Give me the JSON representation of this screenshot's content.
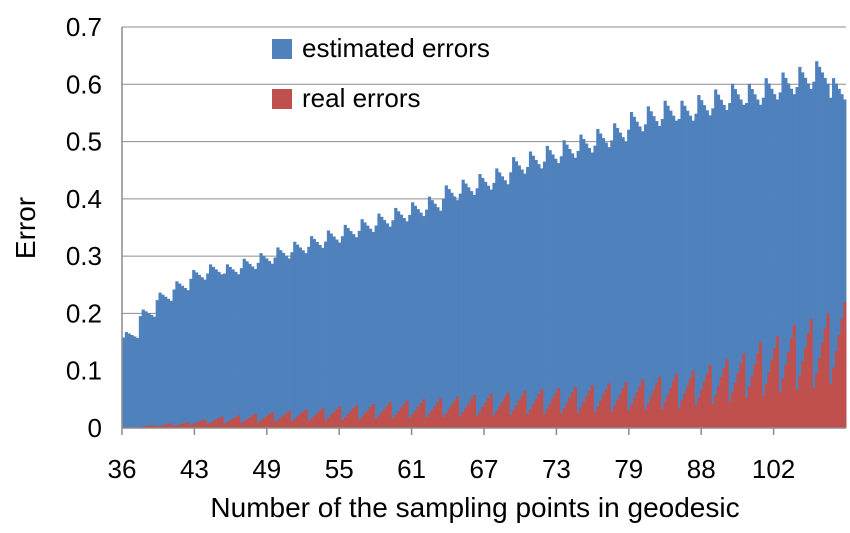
{
  "chart_data": {
    "type": "bar",
    "title": "",
    "xlabel": "Number of the sampling points in geodesic",
    "ylabel": "Error",
    "ylim": [
      0,
      0.7
    ],
    "yticks": [
      "0",
      "0.1",
      "0.2",
      "0.3",
      "0.4",
      "0.5",
      "0.6",
      "0.7"
    ],
    "xticks": [
      "36",
      "43",
      "49",
      "55",
      "61",
      "67",
      "73",
      "79",
      "88",
      "102"
    ],
    "grid": "horizontal",
    "legend_position": "top",
    "series": [
      {
        "name": "estimated errors",
        "color": "#4f81bd",
        "values": [
          0.17,
          0.21,
          0.24,
          0.26,
          0.28,
          0.29,
          0.29,
          0.3,
          0.31,
          0.32,
          0.33,
          0.34,
          0.35,
          0.36,
          0.37,
          0.38,
          0.39,
          0.4,
          0.41,
          0.43,
          0.44,
          0.45,
          0.46,
          0.48,
          0.49,
          0.5,
          0.51,
          0.52,
          0.53,
          0.54,
          0.56,
          0.57,
          0.58,
          0.58,
          0.59,
          0.6,
          0.61,
          0.61,
          0.62,
          0.63,
          0.64,
          0.65,
          0.62
        ]
      },
      {
        "name": "real errors",
        "color": "#c0504d",
        "values": [
          0.0,
          0.005,
          0.008,
          0.01,
          0.015,
          0.02,
          0.022,
          0.025,
          0.028,
          0.03,
          0.033,
          0.035,
          0.038,
          0.04,
          0.042,
          0.045,
          0.048,
          0.05,
          0.052,
          0.055,
          0.058,
          0.06,
          0.062,
          0.065,
          0.068,
          0.07,
          0.072,
          0.075,
          0.078,
          0.08,
          0.085,
          0.09,
          0.095,
          0.1,
          0.11,
          0.12,
          0.13,
          0.15,
          0.16,
          0.18,
          0.19,
          0.2,
          0.22
        ]
      }
    ]
  }
}
